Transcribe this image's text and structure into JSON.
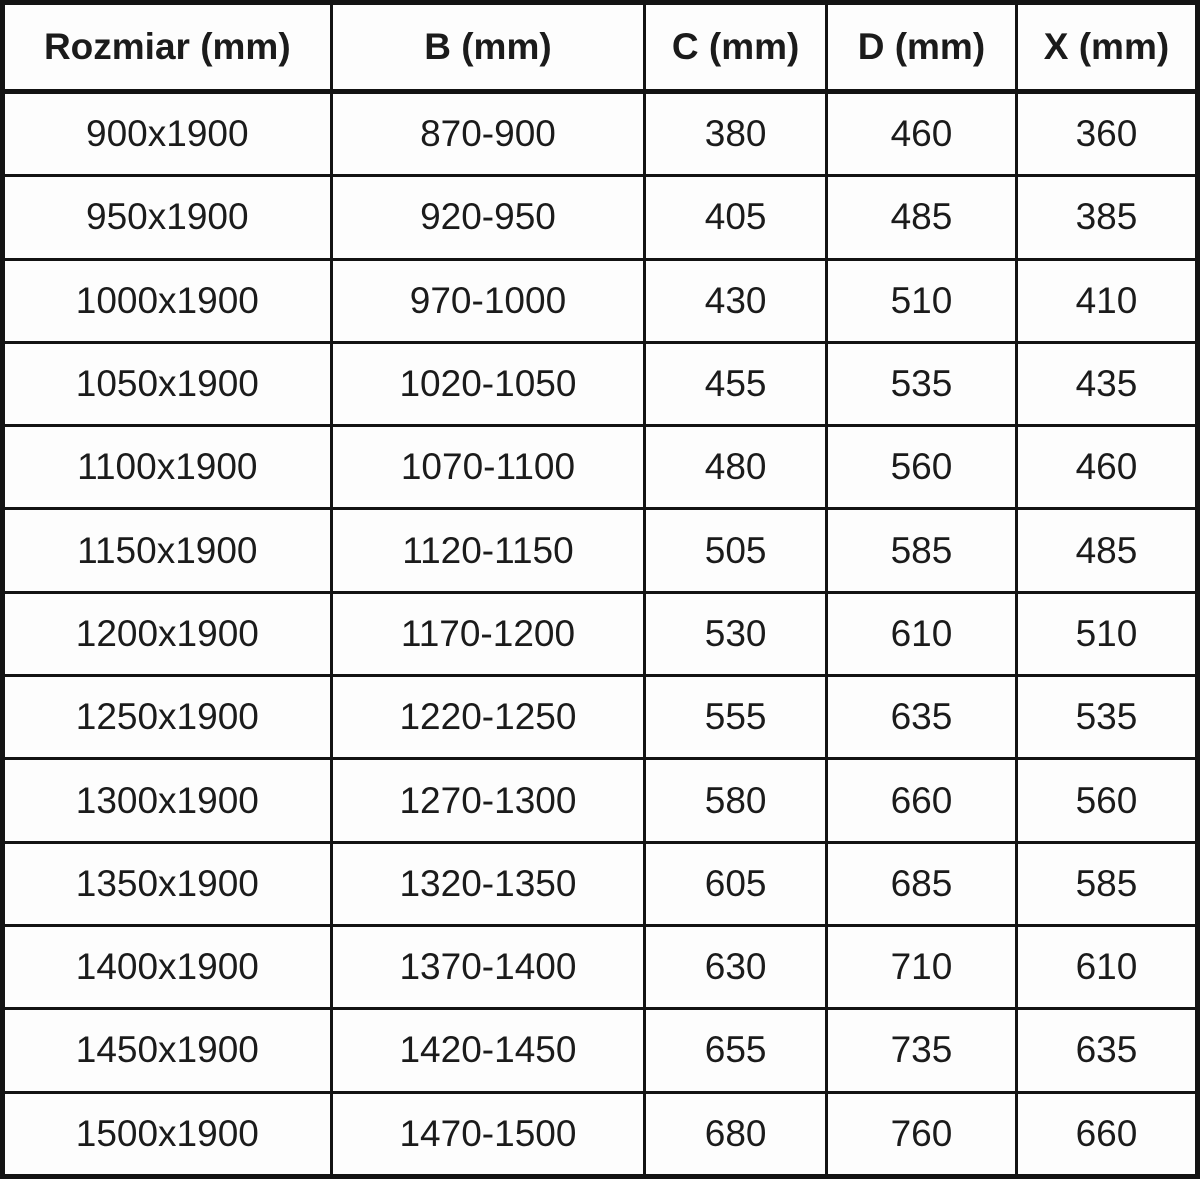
{
  "table": {
    "columns": [
      "Rozmiar (mm)",
      "B (mm)",
      "C (mm)",
      "D (mm)",
      "X (mm)"
    ],
    "rows": [
      [
        "900x1900",
        "870-900",
        "380",
        "460",
        "360"
      ],
      [
        "950x1900",
        "920-950",
        "405",
        "485",
        "385"
      ],
      [
        "1000x1900",
        "970-1000",
        "430",
        "510",
        "410"
      ],
      [
        "1050x1900",
        "1020-1050",
        "455",
        "535",
        "435"
      ],
      [
        "1100x1900",
        "1070-1100",
        "480",
        "560",
        "460"
      ],
      [
        "1150x1900",
        "1120-1150",
        "505",
        "585",
        "485"
      ],
      [
        "1200x1900",
        "1170-1200",
        "530",
        "610",
        "510"
      ],
      [
        "1250x1900",
        "1220-1250",
        "555",
        "635",
        "535"
      ],
      [
        "1300x1900",
        "1270-1300",
        "580",
        "660",
        "560"
      ],
      [
        "1350x1900",
        "1320-1350",
        "605",
        "685",
        "585"
      ],
      [
        "1400x1900",
        "1370-1400",
        "630",
        "710",
        "610"
      ],
      [
        "1450x1900",
        "1420-1450",
        "655",
        "735",
        "635"
      ],
      [
        "1500x1900",
        "1470-1500",
        "680",
        "760",
        "660"
      ]
    ]
  }
}
